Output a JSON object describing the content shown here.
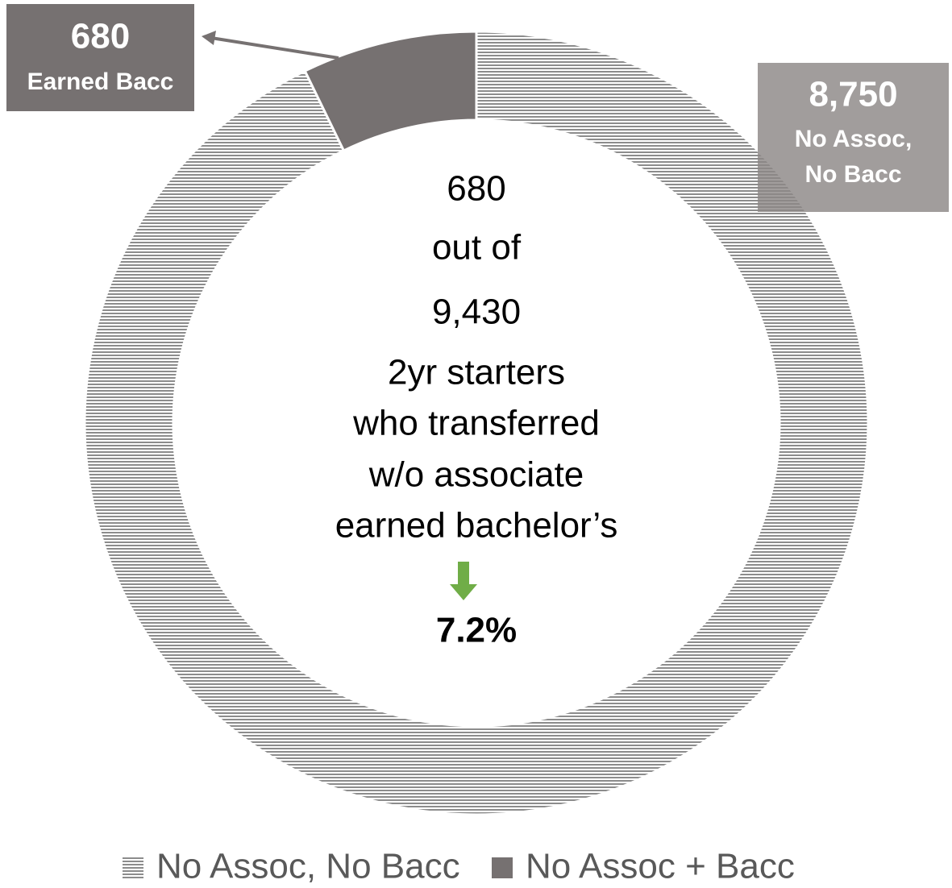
{
  "chart_data": {
    "type": "donut",
    "categories": [
      "No Assoc, No Bacc",
      "No Assoc + Bacc"
    ],
    "values": [
      8750,
      680
    ],
    "value_labels": [
      "8,750",
      "680"
    ],
    "slice_labels": [
      [
        "No Assoc,",
        "No Bacc"
      ],
      [
        "Earned Bacc"
      ]
    ],
    "colors": [
      "#8c8c8c",
      "#767171"
    ],
    "patterns": [
      "horizontal-lines",
      "solid"
    ],
    "center_text": [
      "680",
      "out of",
      "9,430",
      "2yr starters",
      "who transferred",
      "w/o associate",
      "earned bachelor’s",
      "7.2%"
    ],
    "legend": "bottom"
  }
}
